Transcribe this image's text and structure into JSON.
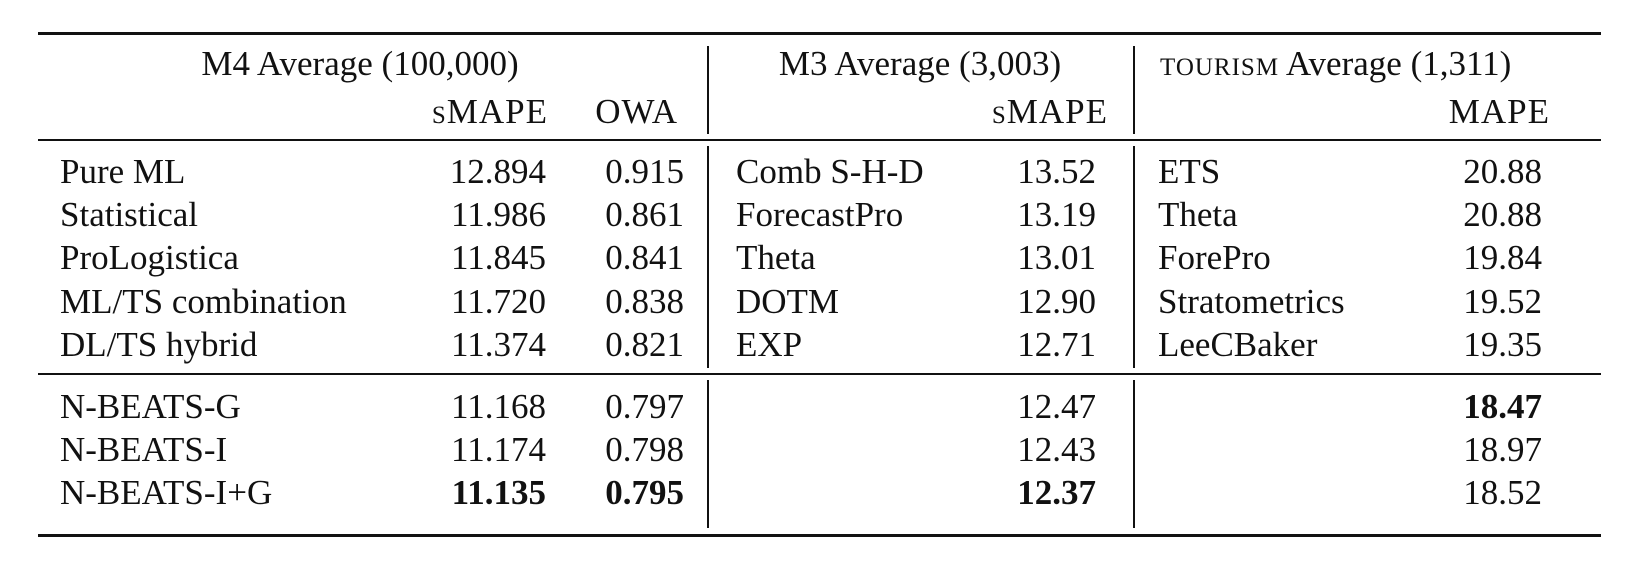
{
  "groups": {
    "m4_title": "M4 Average (100,000)",
    "m3_title": "M3 Average (3,003)",
    "tourism_prefix": "tourism",
    "tourism_suffix": " Average (1,311)"
  },
  "metrics": {
    "m4_smape": "sMAPE",
    "m4_owa": "OWA",
    "m3_smape": "sMAPE",
    "tourism_mape": "MAPE"
  },
  "baselines": [
    {
      "m4_name": "Pure ML",
      "m4_smape": "12.894",
      "m4_owa": "0.915",
      "m3_name": "Comb S-H-D",
      "m3_smape": "13.52",
      "t_name": "ETS",
      "t_mape": "20.88"
    },
    {
      "m4_name": "Statistical",
      "m4_smape": "11.986",
      "m4_owa": "0.861",
      "m3_name": "ForecastPro",
      "m3_smape": "13.19",
      "t_name": "Theta",
      "t_mape": "20.88"
    },
    {
      "m4_name": "ProLogistica",
      "m4_smape": "11.845",
      "m4_owa": "0.841",
      "m3_name": "Theta",
      "m3_smape": "13.01",
      "t_name": "ForePro",
      "t_mape": "19.84"
    },
    {
      "m4_name": "ML/TS combination",
      "m4_smape": "11.720",
      "m4_owa": "0.838",
      "m3_name": "DOTM",
      "m3_smape": "12.90",
      "t_name": "Stratometrics",
      "t_mape": "19.52"
    },
    {
      "m4_name": "DL/TS hybrid",
      "m4_smape": "11.374",
      "m4_owa": "0.821",
      "m3_name": "EXP",
      "m3_smape": "12.71",
      "t_name": "LeeCBaker",
      "t_mape": "19.35"
    }
  ],
  "nbeats": [
    {
      "name": "N-BEATS-G",
      "m4_smape": "11.168",
      "m4_owa": "0.797",
      "m3_smape": "12.47",
      "t_mape": "18.47"
    },
    {
      "name": "N-BEATS-I",
      "m4_smape": "11.174",
      "m4_owa": "0.798",
      "m3_smape": "12.43",
      "t_mape": "18.97"
    },
    {
      "name": "N-BEATS-I+G",
      "m4_smape": "11.135",
      "m4_owa": "0.795",
      "m3_smape": "12.37",
      "t_mape": "18.52"
    }
  ]
}
